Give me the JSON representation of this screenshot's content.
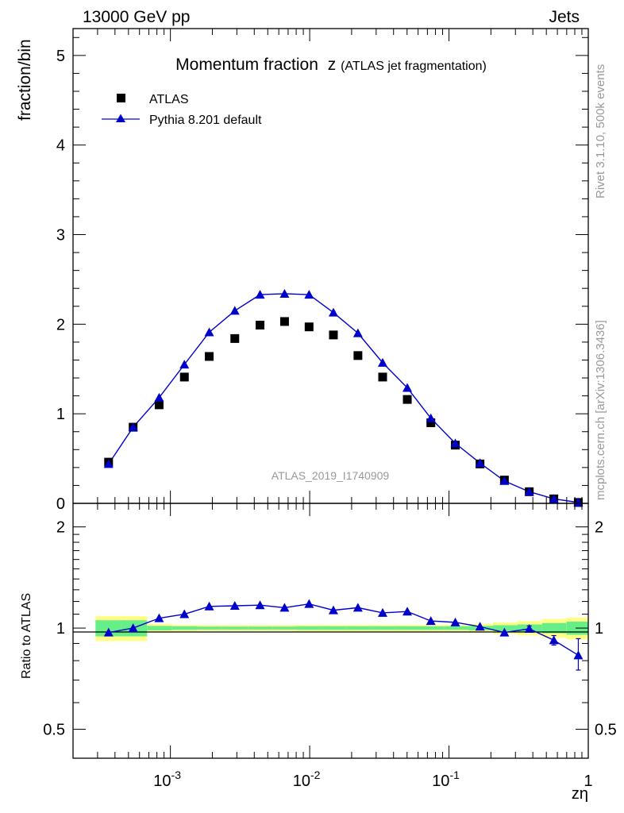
{
  "header": {
    "left": "13000 GeV pp",
    "right": "Jets"
  },
  "side_labels": {
    "rivet": "Rivet 3.1.10,  500k events",
    "mcplots": "mcplots.cern.ch [arXiv:1306.3436]"
  },
  "chart_data": [
    {
      "type": "scatter",
      "title": "Momentum fraction",
      "title_symbol": "z",
      "subtitle": "(ATLAS jet fragmentation)",
      "ylabel": "fraction/bin",
      "xscale": "log",
      "xlim": [
        0.0002,
        1
      ],
      "ylim": [
        0,
        5.3
      ],
      "yticks": [
        "0",
        "1",
        "2",
        "3",
        "4",
        "5"
      ],
      "watermark": "ATLAS_2019_I1740909",
      "legend": {
        "position": "top-left",
        "entries": [
          "ATLAS",
          "Pythia 8.201 default"
        ]
      },
      "x": [
        0.00036,
        0.00054,
        0.00083,
        0.00126,
        0.0019,
        0.0029,
        0.0044,
        0.0066,
        0.0099,
        0.0148,
        0.0222,
        0.0334,
        0.0502,
        0.0741,
        0.111,
        0.167,
        0.25,
        0.377,
        0.566,
        0.848
      ],
      "series": [
        {
          "name": "ATLAS",
          "marker": "square",
          "color": "#000000",
          "values": [
            0.46,
            0.85,
            1.1,
            1.41,
            1.64,
            1.84,
            1.99,
            2.03,
            1.97,
            1.88,
            1.65,
            1.41,
            1.16,
            0.9,
            0.65,
            0.44,
            0.26,
            0.13,
            0.05,
            0.01
          ]
        },
        {
          "name": "Pythia 8.201 default",
          "marker": "triangle",
          "color": "#0000cc",
          "values": [
            0.44,
            0.85,
            1.18,
            1.55,
            1.91,
            2.15,
            2.33,
            2.34,
            2.33,
            2.13,
            1.9,
            1.57,
            1.29,
            0.95,
            0.67,
            0.45,
            0.25,
            0.13,
            0.05,
            0.01
          ]
        }
      ]
    },
    {
      "type": "line",
      "ylabel": "Ratio to ATLAS",
      "xlabel": "zη",
      "xscale": "log",
      "yscale": "log",
      "xlim": [
        0.0002,
        1
      ],
      "ylim": [
        0.41,
        2.35
      ],
      "yticks": [
        "0.5",
        "1",
        "2"
      ],
      "xticks": [
        "10^-3",
        "10^-2",
        "10^-1",
        "1"
      ],
      "x": [
        0.00036,
        0.00054,
        0.00083,
        0.00126,
        0.0019,
        0.0029,
        0.0044,
        0.0066,
        0.0099,
        0.0148,
        0.0222,
        0.0334,
        0.0502,
        0.0741,
        0.111,
        0.167,
        0.25,
        0.377,
        0.566,
        0.848
      ],
      "series": [
        {
          "name": "Pythia 8.201 default",
          "color": "#0000cc",
          "values": [
            0.97,
            1.0,
            1.07,
            1.1,
            1.16,
            1.165,
            1.17,
            1.15,
            1.18,
            1.13,
            1.15,
            1.11,
            1.12,
            1.05,
            1.04,
            1.01,
            0.97,
            0.995,
            0.92,
            0.83
          ],
          "err_low": [
            0,
            0,
            0,
            0,
            0,
            0,
            0,
            0,
            0,
            0,
            0,
            0,
            0,
            0,
            0,
            0,
            0,
            0.02,
            0.03,
            0.08
          ],
          "err_high": [
            0,
            0,
            0,
            0,
            0,
            0,
            0,
            0,
            0,
            0,
            0,
            0,
            0,
            0,
            0,
            0,
            0,
            0.02,
            0.03,
            0.1
          ]
        }
      ],
      "bands": {
        "green": "#66ee88",
        "yellow": "#ffff88",
        "edges": [
          0.00029,
          0.00044,
          0.00068,
          0.00103,
          0.00155,
          0.0023,
          0.0036,
          0.0054,
          0.0081,
          0.0121,
          0.0182,
          0.0273,
          0.041,
          0.0615,
          0.0922,
          0.138,
          0.207,
          0.311,
          0.466,
          0.699,
          1.0
        ],
        "green_half": [
          0.055,
          0.055,
          0.015,
          0.012,
          0.01,
          0.01,
          0.01,
          0.01,
          0.012,
          0.012,
          0.012,
          0.012,
          0.012,
          0.012,
          0.012,
          0.015,
          0.02,
          0.025,
          0.035,
          0.045
        ],
        "yellow_half": [
          0.085,
          0.085,
          0.03,
          0.022,
          0.02,
          0.02,
          0.02,
          0.02,
          0.022,
          0.022,
          0.022,
          0.022,
          0.022,
          0.022,
          0.022,
          0.03,
          0.04,
          0.05,
          0.065,
          0.075
        ]
      }
    }
  ]
}
